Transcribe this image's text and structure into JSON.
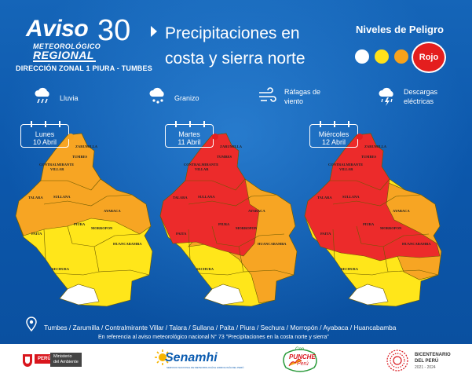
{
  "header": {
    "aviso": "Aviso",
    "number": "30",
    "meteorologico": "METEOROLÓGICO",
    "regional": "REGIONAL",
    "direccion": "DIRECCIÓN ZONAL 1 PIURA - TUMBES",
    "headline_line1": "Precipitaciones en",
    "headline_line2": "costa y sierra norte"
  },
  "niveles": {
    "title": "Niveles de Peligro",
    "colors": [
      "#ffffff",
      "#ffe11a",
      "#f7a21b"
    ],
    "rojo_label": "Rojo",
    "rojo_color": "#e41e1e"
  },
  "legend": [
    {
      "icon": "rain-cloud-icon",
      "label": "Lluvia"
    },
    {
      "icon": "hail-cloud-icon",
      "label": "Granizo"
    },
    {
      "icon": "wind-gust-icon",
      "label_line1": "Ráfagas de",
      "label_line2": "viento"
    },
    {
      "icon": "lightning-cloud-icon",
      "label_line1": "Descargas",
      "label_line2": "eléctricas"
    }
  ],
  "maps": [
    {
      "day": "Lunes",
      "date": "10 Abril",
      "dot_color": "#f7a21b"
    },
    {
      "day": "Martes",
      "date": "11 Abril",
      "dot_color": "#e41e1e"
    },
    {
      "day": "Miércoles",
      "date": "12 Abril",
      "dot_color": "#e41e1e"
    }
  ],
  "places": {
    "zarumilla": "ZARUMILLA",
    "tumbes": "TUMBES",
    "contralmirante": "CONTRALMIRANTE",
    "villar": "VILLAR",
    "talara": "TALARA",
    "sullana": "SULLANA",
    "ayabaca": "AYABACA",
    "paita": "PAITA",
    "piura": "PIURA",
    "morropon": "MORROPON",
    "huancabamba": "HUANCABAMBA",
    "sechura": "SECHURA"
  },
  "footer": {
    "districts": "Tumbes / Zarumilla / Contralmirante Villar / Talara / Sullana / Paita / Piura / Sechura  / Morropón / Ayabaca / Huancabamba",
    "reference": "En referencia al aviso meteorológico nacional N° 73 \"Precipitaciones en la costa norte y sierra\""
  },
  "logos": {
    "peru": "PERÚ",
    "ministerio_line1": "Ministerio",
    "ministerio_line2": "del Ambiente",
    "senamhi": "Senamhi",
    "senamhi_sub": "SERVICIO NACIONAL DE METEOROLOGÍA E HIDROLOGÍA DEL PERÚ",
    "con_text": "Con",
    "punche_text": "PUNCHE",
    "peru_text": "Perú",
    "bicentenario": "BICENTENARIO",
    "del_peru": "DEL PERÚ",
    "years": "2021 - 2024"
  }
}
